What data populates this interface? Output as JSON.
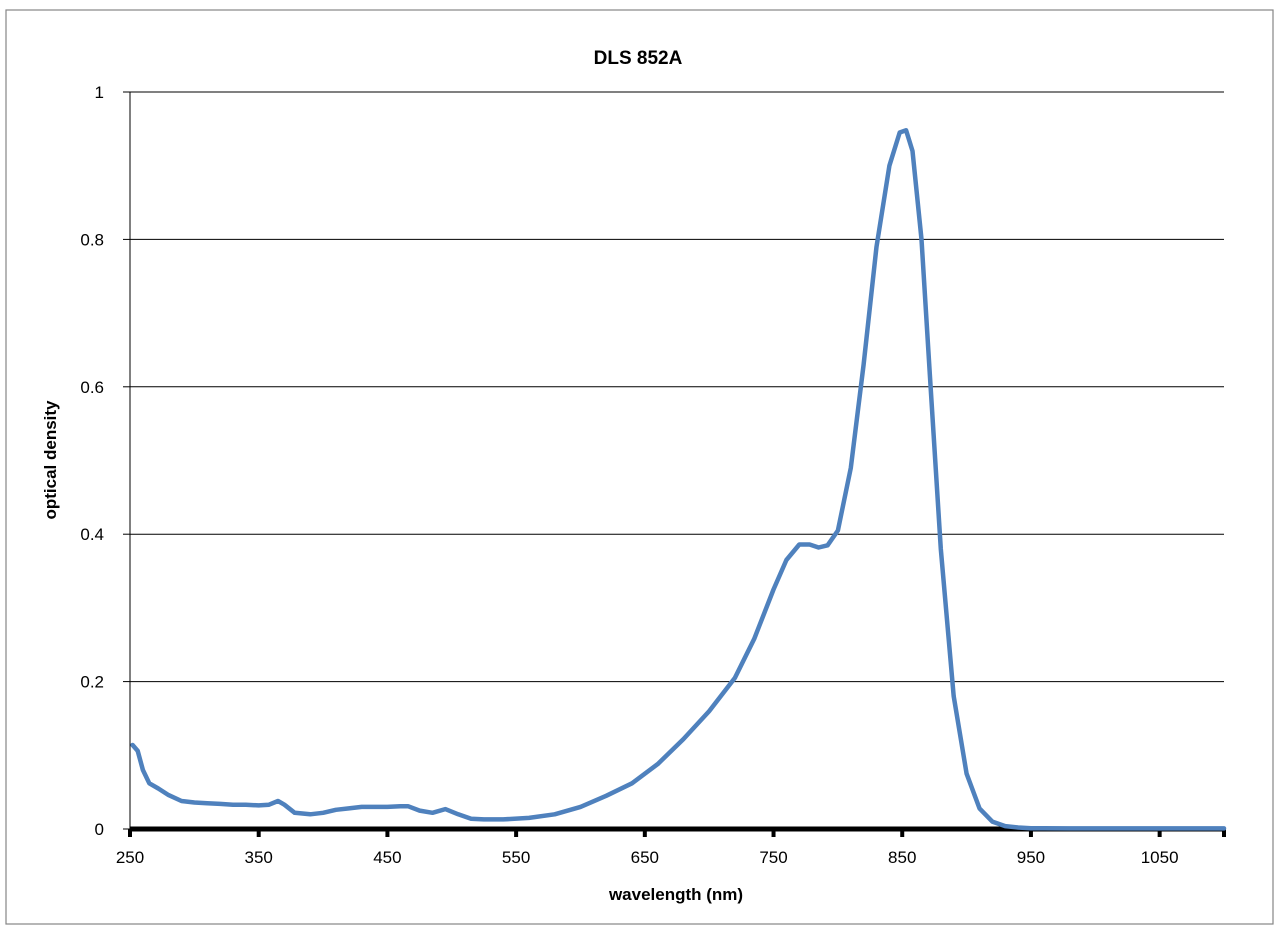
{
  "chart_data": {
    "type": "line",
    "title": "DLS 852A",
    "xlabel": "wavelength (nm)",
    "ylabel": "optical density",
    "xlim": [
      250,
      1100
    ],
    "ylim": [
      0,
      1
    ],
    "x_ticks": [
      250,
      350,
      450,
      550,
      650,
      750,
      850,
      950,
      1050
    ],
    "y_ticks": [
      0,
      0.2,
      0.4,
      0.6,
      0.8,
      1
    ],
    "y_tick_labels": [
      "0",
      "0.2",
      "0.4",
      "0.6",
      "0.8",
      "1"
    ],
    "grid": "horizontal",
    "legend": "none",
    "series": [
      {
        "color": "#4f81bd",
        "x": [
          252,
          256,
          260,
          265,
          272,
          280,
          290,
          300,
          310,
          320,
          330,
          340,
          350,
          358,
          365,
          370,
          378,
          390,
          400,
          410,
          420,
          430,
          440,
          450,
          460,
          466,
          475,
          485,
          495,
          505,
          515,
          525,
          540,
          560,
          580,
          600,
          620,
          640,
          660,
          680,
          700,
          720,
          735,
          750,
          760,
          770,
          778,
          785,
          792,
          800,
          810,
          820,
          830,
          840,
          848,
          853,
          858,
          865,
          872,
          880,
          890,
          900,
          910,
          920,
          930,
          940,
          950,
          960,
          980,
          1000,
          1050,
          1100
        ],
        "y": [
          0.114,
          0.106,
          0.08,
          0.062,
          0.055,
          0.046,
          0.038,
          0.036,
          0.035,
          0.034,
          0.033,
          0.033,
          0.032,
          0.033,
          0.038,
          0.033,
          0.022,
          0.02,
          0.022,
          0.026,
          0.028,
          0.03,
          0.03,
          0.03,
          0.031,
          0.031,
          0.025,
          0.022,
          0.027,
          0.02,
          0.014,
          0.013,
          0.013,
          0.015,
          0.02,
          0.03,
          0.045,
          0.062,
          0.088,
          0.122,
          0.16,
          0.205,
          0.258,
          0.325,
          0.365,
          0.386,
          0.386,
          0.382,
          0.385,
          0.405,
          0.49,
          0.63,
          0.79,
          0.9,
          0.945,
          0.948,
          0.92,
          0.8,
          0.6,
          0.38,
          0.18,
          0.075,
          0.028,
          0.01,
          0.004,
          0.002,
          0.001,
          0.001,
          0.0008,
          0.0008,
          0.0008,
          0.0008
        ]
      }
    ]
  }
}
